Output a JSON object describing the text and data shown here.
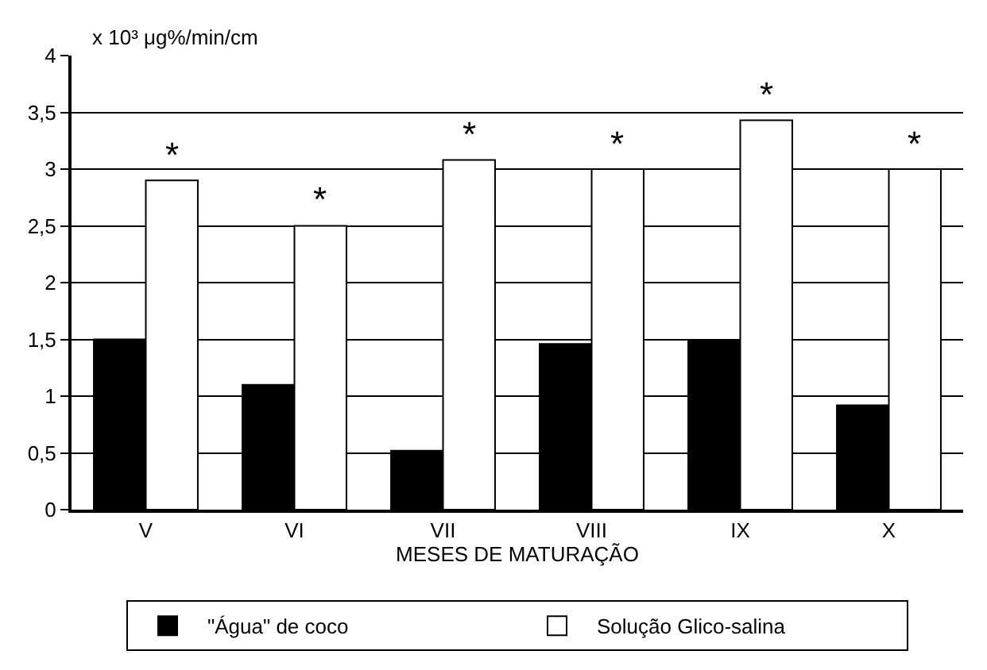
{
  "chart_data": {
    "type": "bar",
    "ylabel": "x 10³ μg%/min/cm",
    "xlabel": "MESES DE MATURAÇÃO",
    "categories": [
      "V",
      "VI",
      "VII",
      "VIII",
      "IX",
      "X"
    ],
    "series": [
      {
        "name": "\"Água\" de coco",
        "color": "#000000",
        "values": [
          1.5,
          1.1,
          0.52,
          1.46,
          1.49,
          0.92
        ]
      },
      {
        "name": "Solução Glico-salina",
        "color": "#ffffff",
        "values": [
          2.9,
          2.5,
          3.08,
          3.0,
          3.43,
          3.0
        ]
      }
    ],
    "ylim": [
      0,
      4
    ],
    "yticks": [
      0,
      {
        "value": 0.5,
        "label": "0,5"
      },
      1,
      {
        "value": 1.5,
        "label": "1,5"
      },
      2,
      {
        "value": 2.5,
        "label": "2,5"
      },
      3,
      {
        "value": 3.5,
        "label": "3,5"
      },
      4
    ],
    "grid": "y",
    "legend": "bottom",
    "annotations": [
      {
        "text": "*",
        "x": "V",
        "y": 2.9
      },
      {
        "text": "*",
        "x": "VI",
        "y": 2.5
      },
      {
        "text": "*",
        "x": "VII",
        "y": 3.08
      },
      {
        "text": "*",
        "x": "VIII",
        "y": 3.0
      },
      {
        "text": "*",
        "x": "IX",
        "y": 3.43
      },
      {
        "text": "*",
        "x": "X",
        "y": 3.0
      }
    ]
  }
}
